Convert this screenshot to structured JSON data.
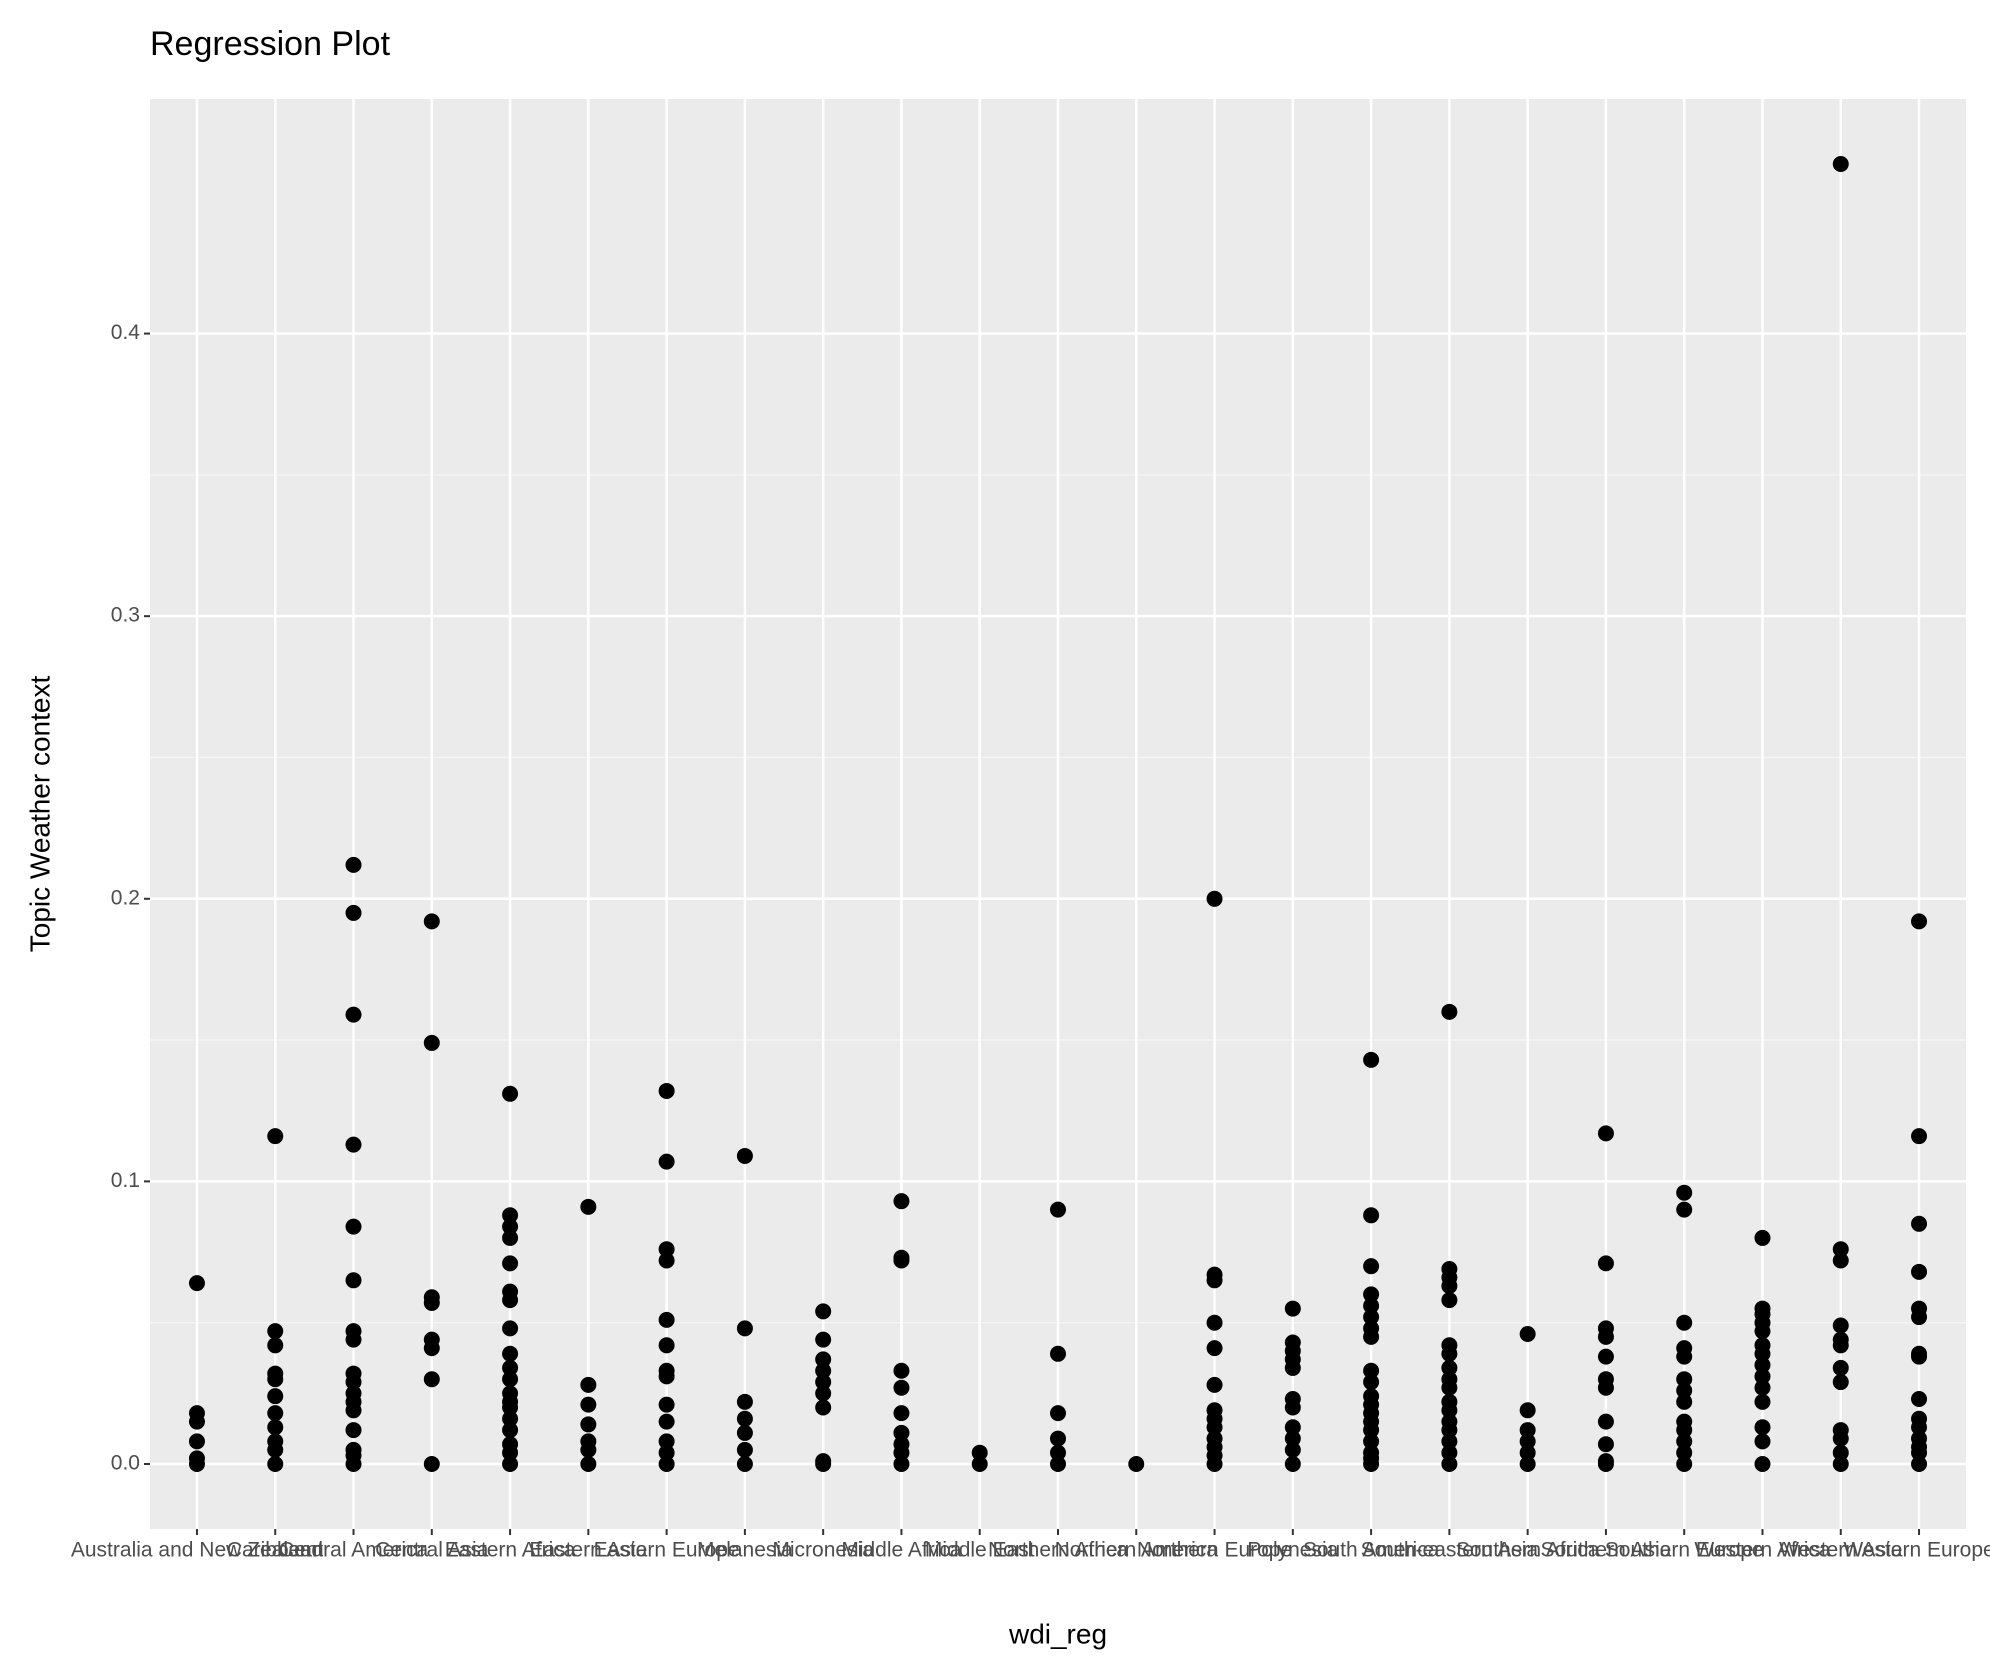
{
  "chart_data": {
    "type": "scatter",
    "title": "Regression Plot",
    "x_label": "wdi_reg",
    "y_label": "Topic Weather context",
    "categories": [
      "Australia and New Zealand",
      "Caribbean",
      "Central America",
      "Central Asia",
      "Eastern Africa",
      "Eastern Asia",
      "Eastern Europe",
      "Melanesia",
      "Micronesia",
      "Middle Africa",
      "Middle East",
      "Northern Africa",
      "Northern America",
      "Northern Europe",
      "Polynesia",
      "South America",
      "South-eastern Asia",
      "Southern Africa",
      "Southern Asia",
      "Southern Europe",
      "Western Africa",
      "Western Asia",
      "Western Europe"
    ],
    "values": [
      [
        0.064,
        0.018,
        0.015,
        0.008,
        0.002,
        0
      ],
      [
        0.116,
        0.047,
        0.042,
        0.032,
        0.03,
        0.024,
        0.018,
        0.013,
        0.008,
        0.005,
        0
      ],
      [
        0.212,
        0.195,
        0.159,
        0.113,
        0.084,
        0.065,
        0.047,
        0.044,
        0.032,
        0.029,
        0.025,
        0.022,
        0.019,
        0.012,
        0.005,
        0.003,
        0
      ],
      [
        0.192,
        0.149,
        0.059,
        0.057,
        0.044,
        0.041,
        0.03,
        0
      ],
      [
        0.131,
        0.088,
        0.084,
        0.08,
        0.071,
        0.061,
        0.058,
        0.048,
        0.039,
        0.034,
        0.03,
        0.025,
        0.022,
        0.02,
        0.016,
        0.012,
        0.007,
        0.004,
        0
      ],
      [
        0.091,
        0.028,
        0.021,
        0.014,
        0.008,
        0.005,
        0
      ],
      [
        0.132,
        0.107,
        0.076,
        0.072,
        0.051,
        0.042,
        0.033,
        0.031,
        0.021,
        0.015,
        0.008,
        0.004,
        0
      ],
      [
        0.109,
        0.048,
        0.022,
        0.016,
        0.011,
        0.005,
        0
      ],
      [
        0.054,
        0.044,
        0.037,
        0.033,
        0.029,
        0.025,
        0.02,
        0.001,
        0
      ],
      [
        0.093,
        0.073,
        0.072,
        0.033,
        0.027,
        0.018,
        0.011,
        0.007,
        0.004,
        0
      ],
      [
        0.004,
        0
      ],
      [
        0.09,
        0.039,
        0.018,
        0.009,
        0.004,
        0
      ],
      [
        0
      ],
      [
        0.2,
        0.067,
        0.065,
        0.05,
        0.041,
        0.028,
        0.019,
        0.016,
        0.013,
        0.009,
        0.006,
        0.003,
        0
      ],
      [
        0.055,
        0.043,
        0.04,
        0.037,
        0.034,
        0.023,
        0.02,
        0.013,
        0.009,
        0.005,
        0
      ],
      [
        0.143,
        0.088,
        0.07,
        0.06,
        0.056,
        0.052,
        0.048,
        0.045,
        0.033,
        0.029,
        0.024,
        0.021,
        0.018,
        0.015,
        0.012,
        0.008,
        0.004,
        0.002,
        0
      ],
      [
        0.16,
        0.069,
        0.066,
        0.063,
        0.058,
        0.042,
        0.039,
        0.034,
        0.03,
        0.027,
        0.022,
        0.019,
        0.015,
        0.012,
        0.008,
        0.004,
        0
      ],
      [
        0.046,
        0.019,
        0.012,
        0.008,
        0.004,
        0
      ],
      [
        0.117,
        0.071,
        0.048,
        0.045,
        0.038,
        0.03,
        0.027,
        0.015,
        0.007,
        0.001,
        0
      ],
      [
        0.096,
        0.09,
        0.05,
        0.041,
        0.038,
        0.03,
        0.026,
        0.022,
        0.015,
        0.012,
        0.008,
        0.004,
        0
      ],
      [
        0.08,
        0.055,
        0.053,
        0.05,
        0.047,
        0.042,
        0.039,
        0.035,
        0.031,
        0.027,
        0.022,
        0.013,
        0.008,
        0
      ],
      [
        0.46,
        0.076,
        0.072,
        0.049,
        0.044,
        0.042,
        0.034,
        0.029,
        0.012,
        0.009,
        0.004,
        0
      ],
      [
        0.192,
        0.116,
        0.085,
        0.068,
        0.055,
        0.052,
        0.039,
        0.038,
        0.023,
        0.016,
        0.013,
        0.009,
        0.006,
        0.004,
        0
      ]
    ],
    "color": "#000000",
    "ylim": [
      -0.023,
      0.483
    ],
    "yticks": [
      {
        "value": 0,
        "label": "0.0"
      },
      0.1,
      0.2,
      0.3,
      0.4
    ],
    "grid": true
  }
}
